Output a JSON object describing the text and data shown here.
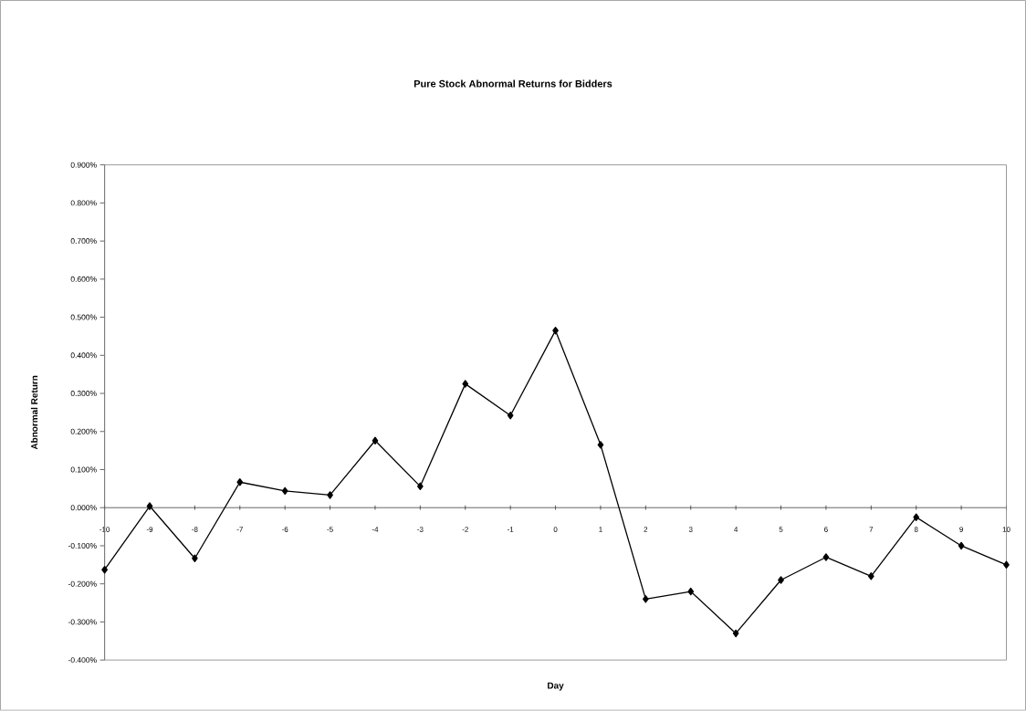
{
  "chart_data": {
    "type": "line",
    "title": "Pure Stock Abnormal Returns for Bidders",
    "xlabel": "Day",
    "ylabel": "Abnormal Return",
    "x": [
      -10,
      -9,
      -8,
      -7,
      -6,
      -5,
      -4,
      -3,
      -2,
      -1,
      0,
      1,
      2,
      3,
      4,
      5,
      6,
      7,
      8,
      9,
      10
    ],
    "series": [
      {
        "color": "#000000",
        "values": [
          -0.163,
          0.004,
          -0.133,
          0.067,
          0.044,
          0.033,
          0.176,
          0.056,
          0.325,
          0.242,
          0.465,
          0.165,
          -0.24,
          -0.22,
          -0.33,
          -0.19,
          -0.13,
          -0.18,
          -0.025,
          -0.1,
          -0.15
        ]
      }
    ],
    "xlim": [
      -10,
      10
    ],
    "xticks": [
      -10,
      -9,
      -8,
      -7,
      -6,
      -5,
      -4,
      -3,
      -2,
      -1,
      0,
      1,
      2,
      3,
      4,
      5,
      6,
      7,
      8,
      9,
      10
    ],
    "ylim": [
      -0.4,
      0.9
    ],
    "yticks": [
      {
        "value": -0.4,
        "label": "-0.400%"
      },
      {
        "value": -0.3,
        "label": "-0.300%"
      },
      {
        "value": -0.2,
        "label": "-0.200%"
      },
      {
        "value": -0.1,
        "label": "-0.100%"
      },
      {
        "value": 0,
        "label": "0.000%"
      },
      {
        "value": 0.1,
        "label": "0.100%"
      },
      {
        "value": 0.2,
        "label": "0.200%"
      },
      {
        "value": 0.3,
        "label": "0.300%"
      },
      {
        "value": 0.4,
        "label": "0.400%"
      },
      {
        "value": 0.5,
        "label": "0.500%"
      },
      {
        "value": 0.6,
        "label": "0.600%"
      },
      {
        "value": 0.7,
        "label": "0.700%"
      },
      {
        "value": 0.8,
        "label": "0.800%"
      },
      {
        "value": 0.9,
        "label": "0.900%"
      }
    ],
    "marker": "diamond",
    "line_style": "solid"
  }
}
